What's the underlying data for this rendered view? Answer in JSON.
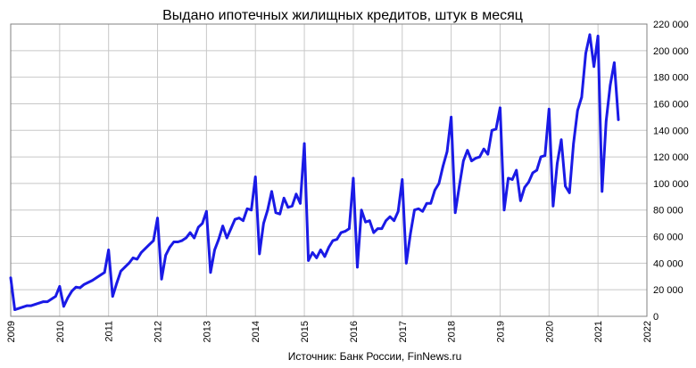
{
  "chart_data": {
    "type": "line",
    "title": "Выдано ипотечных жилищных кредитов, штук  в месяц",
    "source": "Источник:  Банк России, FinNews.ru",
    "xlabel": "",
    "ylabel": "",
    "xlim": [
      2009,
      2022
    ],
    "ylim": [
      0,
      220000
    ],
    "ytick_values": [
      0,
      20000,
      40000,
      60000,
      80000,
      100000,
      120000,
      140000,
      160000,
      180000,
      200000,
      220000
    ],
    "ytick_labels": [
      "0",
      "20 000",
      "40 000",
      "60 000",
      "80 000",
      "100 000",
      "120 000",
      "140 000",
      "160 000",
      "180 000",
      "200 000",
      "220 000"
    ],
    "xtick_labels": [
      "2009",
      "2010",
      "2011",
      "2012",
      "2013",
      "2014",
      "2015",
      "2016",
      "2017",
      "2018",
      "2019",
      "2020",
      "2021",
      "2022"
    ],
    "grid": true,
    "legend": "none",
    "series": [
      {
        "color": "#1a1ae6",
        "x": [
          2009.0,
          2009.083,
          2009.167,
          2009.25,
          2009.333,
          2009.417,
          2009.5,
          2009.583,
          2009.667,
          2009.75,
          2009.833,
          2009.917,
          2010.0,
          2010.083,
          2010.167,
          2010.25,
          2010.333,
          2010.417,
          2010.5,
          2010.583,
          2010.667,
          2010.75,
          2010.833,
          2010.917,
          2011.0,
          2011.083,
          2011.167,
          2011.25,
          2011.333,
          2011.417,
          2011.5,
          2011.583,
          2011.667,
          2011.75,
          2011.833,
          2011.917,
          2012.0,
          2012.083,
          2012.167,
          2012.25,
          2012.333,
          2012.417,
          2012.5,
          2012.583,
          2012.667,
          2012.75,
          2012.833,
          2012.917,
          2013.0,
          2013.083,
          2013.167,
          2013.25,
          2013.333,
          2013.417,
          2013.5,
          2013.583,
          2013.667,
          2013.75,
          2013.833,
          2013.917,
          2014.0,
          2014.083,
          2014.167,
          2014.25,
          2014.333,
          2014.417,
          2014.5,
          2014.583,
          2014.667,
          2014.75,
          2014.833,
          2014.917,
          2015.0,
          2015.083,
          2015.167,
          2015.25,
          2015.333,
          2015.417,
          2015.5,
          2015.583,
          2015.667,
          2015.75,
          2015.833,
          2015.917,
          2016.0,
          2016.083,
          2016.167,
          2016.25,
          2016.333,
          2016.417,
          2016.5,
          2016.583,
          2016.667,
          2016.75,
          2016.833,
          2016.917,
          2017.0,
          2017.083,
          2017.167,
          2017.25,
          2017.333,
          2017.417,
          2017.5,
          2017.583,
          2017.667,
          2017.75,
          2017.833,
          2017.917,
          2018.0,
          2018.083,
          2018.167,
          2018.25,
          2018.333,
          2018.417,
          2018.5,
          2018.583,
          2018.667,
          2018.75,
          2018.833,
          2018.917,
          2019.0,
          2019.083,
          2019.167,
          2019.25,
          2019.333,
          2019.417,
          2019.5,
          2019.583,
          2019.667,
          2019.75,
          2019.833,
          2019.917,
          2020.0,
          2020.083,
          2020.167,
          2020.25,
          2020.333,
          2020.417,
          2020.5,
          2020.583,
          2020.667,
          2020.75,
          2020.833,
          2020.917,
          2021.0,
          2021.083,
          2021.167,
          2021.25,
          2021.333,
          2021.417
        ],
        "y": [
          29000,
          5000,
          6000,
          7000,
          8000,
          8000,
          9000,
          10000,
          11000,
          11000,
          13000,
          15000,
          22500,
          7500,
          14000,
          19000,
          22000,
          21500,
          24000,
          25500,
          27000,
          29000,
          31000,
          33000,
          50000,
          15000,
          25000,
          34000,
          37000,
          40000,
          44000,
          43000,
          48000,
          51000,
          54000,
          57000,
          74000,
          28000,
          46000,
          52000,
          56000,
          56000,
          57000,
          59000,
          63000,
          59000,
          67000,
          70000,
          79000,
          33000,
          50000,
          58000,
          68000,
          59000,
          66000,
          73000,
          74000,
          72000,
          81000,
          80000,
          105000,
          47000,
          70000,
          80000,
          94000,
          78000,
          77000,
          89000,
          82000,
          83000,
          92000,
          85000,
          130000,
          42000,
          48000,
          44000,
          50000,
          45000,
          52000,
          57000,
          58000,
          63000,
          64000,
          66000,
          104000,
          37000,
          80000,
          71000,
          72000,
          63000,
          66000,
          66000,
          72000,
          75000,
          72000,
          79000,
          103000,
          40000,
          62000,
          80000,
          81000,
          79000,
          85000,
          85000,
          95000,
          100000,
          113000,
          124000,
          150000,
          78000,
          98000,
          117000,
          125000,
          117000,
          119000,
          120000,
          126000,
          122000,
          140000,
          141000,
          157000,
          80000,
          104000,
          103000,
          110000,
          87000,
          97000,
          101000,
          108000,
          110000,
          120000,
          121000,
          156000,
          83000,
          115000,
          133000,
          98000,
          93000,
          130000,
          155000,
          165000,
          198000,
          212000,
          188000,
          211000,
          94000,
          147000,
          174000,
          191000,
          148000
        ]
      }
    ]
  }
}
